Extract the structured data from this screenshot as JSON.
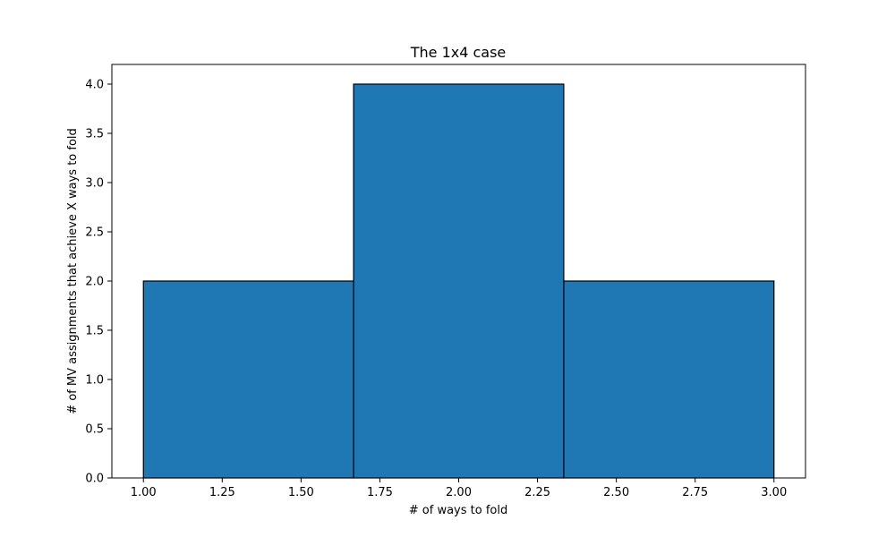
{
  "chart_data": {
    "type": "bar",
    "title": "The 1x4 case",
    "xlabel": "# of ways to fold",
    "ylabel": "# of MV assignments that achieve X ways to fold",
    "bins": [
      {
        "x_start": 1.0,
        "x_end": 1.6667,
        "value": 2
      },
      {
        "x_start": 1.6667,
        "x_end": 2.3333,
        "value": 4
      },
      {
        "x_start": 2.3333,
        "x_end": 3.0,
        "value": 2
      }
    ],
    "xlim": [
      0.9,
      3.1
    ],
    "ylim": [
      0,
      4.2
    ],
    "xticks": [
      1.0,
      1.25,
      1.5,
      1.75,
      2.0,
      2.25,
      2.5,
      2.75,
      3.0
    ],
    "xtick_labels": [
      "1.00",
      "1.25",
      "1.50",
      "1.75",
      "2.00",
      "2.25",
      "2.50",
      "2.75",
      "3.00"
    ],
    "yticks": [
      0,
      0.5,
      1.0,
      1.5,
      2.0,
      2.5,
      3.0,
      3.5,
      4.0
    ],
    "ytick_labels": [
      "0.0",
      "0.5",
      "1.0",
      "1.5",
      "2.0",
      "2.5",
      "3.0",
      "3.5",
      "4.0"
    ],
    "bar_color": "#1f77b4",
    "edge_color": "#000000",
    "grid": false,
    "legend": "none"
  }
}
